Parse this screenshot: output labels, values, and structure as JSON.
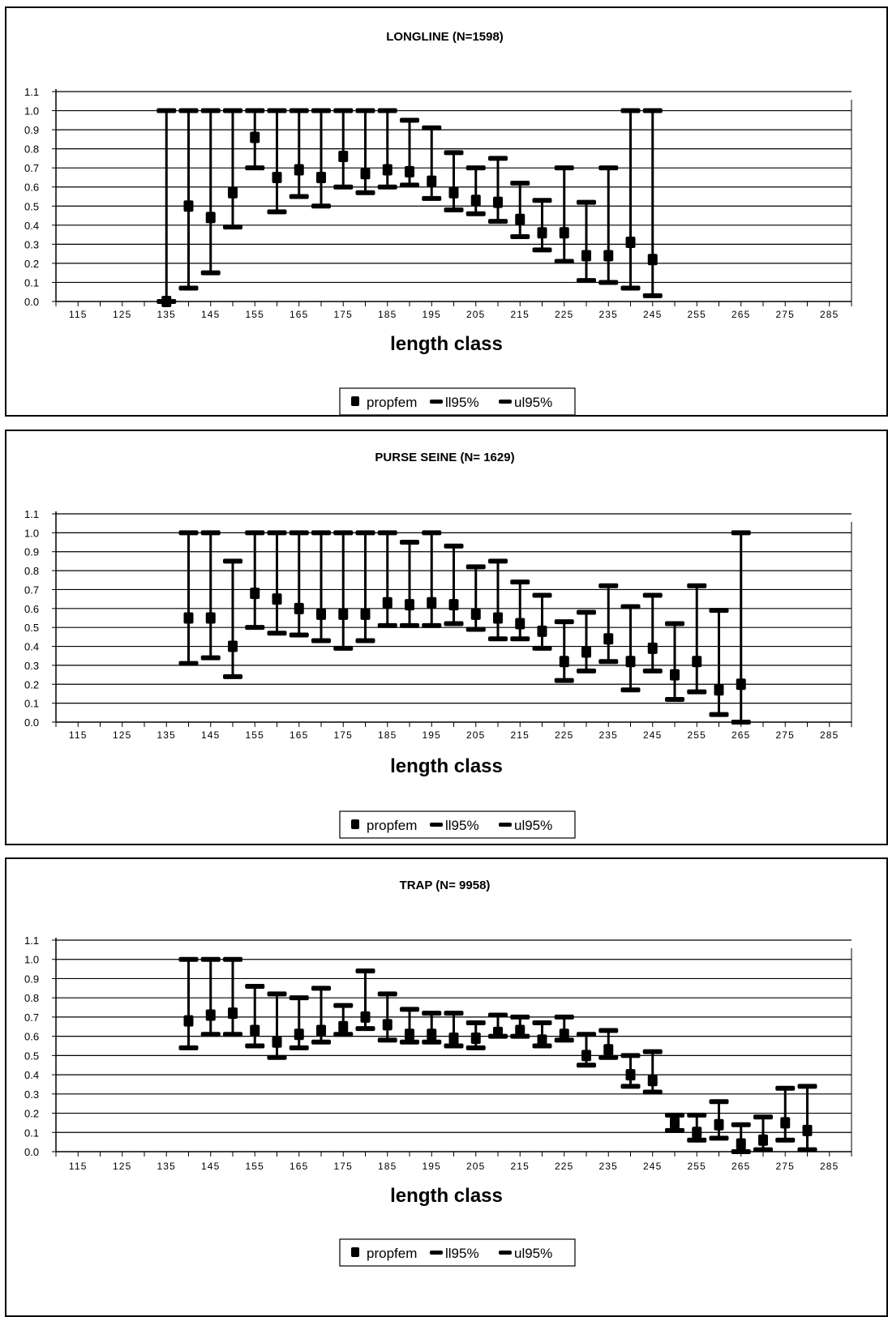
{
  "legend_items": [
    "propfem",
    "ll95%",
    "ul95%"
  ],
  "chart_data": [
    {
      "type": "scatter",
      "title": "LONGLINE (N=1598)",
      "xlabel": "length class",
      "ylabel": "",
      "ylim": [
        0,
        1.1
      ],
      "yticks": [
        "0.0",
        "0.1",
        "0.2",
        "0.3",
        "0.4",
        "0.5",
        "0.6",
        "0.7",
        "0.8",
        "0.9",
        "1.0",
        "1.1"
      ],
      "xticks": [
        "115",
        "125",
        "135",
        "145",
        "155",
        "165",
        "175",
        "185",
        "195",
        "205",
        "215",
        "225",
        "235",
        "245",
        "255",
        "265",
        "275",
        "285"
      ],
      "series": [
        {
          "name": "propfem",
          "x": [
            135,
            140,
            145,
            150,
            155,
            160,
            165,
            170,
            175,
            180,
            185,
            190,
            195,
            200,
            205,
            210,
            215,
            220,
            225,
            230,
            235,
            240,
            245
          ],
          "values": [
            0.0,
            0.5,
            0.44,
            0.57,
            0.86,
            0.65,
            0.69,
            0.65,
            0.76,
            0.67,
            0.69,
            0.68,
            0.63,
            0.57,
            0.53,
            0.52,
            0.43,
            0.36,
            0.36,
            0.24,
            0.24,
            0.31,
            0.22
          ]
        },
        {
          "name": "ll95%",
          "x": [
            135,
            140,
            145,
            150,
            155,
            160,
            165,
            170,
            175,
            180,
            185,
            190,
            195,
            200,
            205,
            210,
            215,
            220,
            225,
            230,
            235,
            240,
            245
          ],
          "values": [
            0.0,
            0.07,
            0.15,
            0.39,
            0.7,
            0.47,
            0.55,
            0.5,
            0.6,
            0.57,
            0.6,
            0.61,
            0.54,
            0.48,
            0.46,
            0.42,
            0.34,
            0.27,
            0.21,
            0.11,
            0.1,
            0.07,
            0.03
          ]
        },
        {
          "name": "ul95%",
          "x": [
            135,
            140,
            145,
            150,
            155,
            160,
            165,
            170,
            175,
            180,
            185,
            190,
            195,
            200,
            205,
            210,
            215,
            220,
            225,
            230,
            235,
            240,
            245
          ],
          "values": [
            1.0,
            1.0,
            1.0,
            1.0,
            1.0,
            1.0,
            1.0,
            1.0,
            1.0,
            1.0,
            1.0,
            0.95,
            0.91,
            0.78,
            0.7,
            0.75,
            0.62,
            0.53,
            0.7,
            0.52,
            0.7,
            1.0,
            1.0
          ]
        }
      ]
    },
    {
      "type": "scatter",
      "title": "PURSE SEINE (N= 1629)",
      "xlabel": "length class",
      "ylabel": "",
      "ylim": [
        0,
        1.1
      ],
      "yticks": [
        "0.0",
        "0.1",
        "0.2",
        "0.3",
        "0.4",
        "0.5",
        "0.6",
        "0.7",
        "0.8",
        "0.9",
        "1.0",
        "1.1"
      ],
      "xticks": [
        "115",
        "125",
        "135",
        "145",
        "155",
        "165",
        "175",
        "185",
        "195",
        "205",
        "215",
        "225",
        "235",
        "245",
        "255",
        "265",
        "275",
        "285"
      ],
      "series": [
        {
          "name": "propfem",
          "x": [
            140,
            145,
            150,
            155,
            160,
            165,
            170,
            175,
            180,
            185,
            190,
            195,
            200,
            205,
            210,
            215,
            220,
            225,
            230,
            235,
            240,
            245,
            250,
            255,
            260,
            265
          ],
          "values": [
            0.55,
            0.55,
            0.4,
            0.68,
            0.65,
            0.6,
            0.57,
            0.57,
            0.57,
            0.63,
            0.62,
            0.63,
            0.62,
            0.57,
            0.55,
            0.52,
            0.48,
            0.32,
            0.37,
            0.44,
            0.32,
            0.39,
            0.25,
            0.32,
            0.17,
            0.2
          ]
        },
        {
          "name": "ll95%",
          "x": [
            140,
            145,
            150,
            155,
            160,
            165,
            170,
            175,
            180,
            185,
            190,
            195,
            200,
            205,
            210,
            215,
            220,
            225,
            230,
            235,
            240,
            245,
            250,
            255,
            260,
            265
          ],
          "values": [
            0.31,
            0.34,
            0.24,
            0.5,
            0.47,
            0.46,
            0.43,
            0.39,
            0.43,
            0.51,
            0.51,
            0.51,
            0.52,
            0.49,
            0.44,
            0.44,
            0.39,
            0.22,
            0.27,
            0.32,
            0.17,
            0.27,
            0.12,
            0.16,
            0.04,
            0.0
          ]
        },
        {
          "name": "ul95%",
          "x": [
            140,
            145,
            150,
            155,
            160,
            165,
            170,
            175,
            180,
            185,
            190,
            195,
            200,
            205,
            210,
            215,
            220,
            225,
            230,
            235,
            240,
            245,
            250,
            255,
            260,
            265
          ],
          "values": [
            1.0,
            1.0,
            0.85,
            1.0,
            1.0,
            1.0,
            1.0,
            1.0,
            1.0,
            1.0,
            0.95,
            1.0,
            0.93,
            0.82,
            0.85,
            0.74,
            0.67,
            0.53,
            0.58,
            0.72,
            0.61,
            0.67,
            0.52,
            0.72,
            0.59,
            1.0
          ]
        }
      ]
    },
    {
      "type": "scatter",
      "title": "TRAP (N= 9958)",
      "xlabel": "length class",
      "ylabel": "",
      "ylim": [
        0,
        1.1
      ],
      "yticks": [
        "0.0",
        "0.1",
        "0.2",
        "0.3",
        "0.4",
        "0.5",
        "0.6",
        "0.7",
        "0.8",
        "0.9",
        "1.0",
        "1.1"
      ],
      "xticks": [
        "115",
        "125",
        "135",
        "145",
        "155",
        "165",
        "175",
        "185",
        "195",
        "205",
        "215",
        "225",
        "235",
        "245",
        "255",
        "265",
        "275",
        "285"
      ],
      "series": [
        {
          "name": "propfem",
          "x": [
            140,
            145,
            150,
            155,
            160,
            165,
            170,
            175,
            180,
            185,
            190,
            195,
            200,
            205,
            210,
            215,
            220,
            225,
            230,
            235,
            240,
            245,
            250,
            255,
            260,
            265,
            270,
            275,
            280
          ],
          "values": [
            0.68,
            0.71,
            0.72,
            0.63,
            0.57,
            0.61,
            0.63,
            0.65,
            0.7,
            0.66,
            0.61,
            0.61,
            0.59,
            0.59,
            0.62,
            0.63,
            0.58,
            0.61,
            0.5,
            0.53,
            0.4,
            0.37,
            0.15,
            0.1,
            0.14,
            0.04,
            0.06,
            0.15,
            0.11
          ]
        },
        {
          "name": "ll95%",
          "x": [
            140,
            145,
            150,
            155,
            160,
            165,
            170,
            175,
            180,
            185,
            190,
            195,
            200,
            205,
            210,
            215,
            220,
            225,
            230,
            235,
            240,
            245,
            250,
            255,
            260,
            265,
            270,
            275,
            280
          ],
          "values": [
            0.54,
            0.61,
            0.61,
            0.55,
            0.49,
            0.54,
            0.57,
            0.61,
            0.64,
            0.58,
            0.57,
            0.57,
            0.55,
            0.54,
            0.6,
            0.6,
            0.55,
            0.58,
            0.45,
            0.49,
            0.34,
            0.31,
            0.11,
            0.06,
            0.07,
            0.0,
            0.01,
            0.06,
            0.01
          ]
        },
        {
          "name": "ul95%",
          "x": [
            140,
            145,
            150,
            155,
            160,
            165,
            170,
            175,
            180,
            185,
            190,
            195,
            200,
            205,
            210,
            215,
            220,
            225,
            230,
            235,
            240,
            245,
            250,
            255,
            260,
            265,
            270,
            275,
            280
          ],
          "values": [
            1.0,
            1.0,
            1.0,
            0.86,
            0.82,
            0.8,
            0.85,
            0.76,
            0.94,
            0.82,
            0.74,
            0.72,
            0.72,
            0.67,
            0.71,
            0.7,
            0.67,
            0.7,
            0.61,
            0.63,
            0.5,
            0.52,
            0.19,
            0.19,
            0.26,
            0.14,
            0.18,
            0.33,
            0.34
          ]
        }
      ]
    }
  ]
}
